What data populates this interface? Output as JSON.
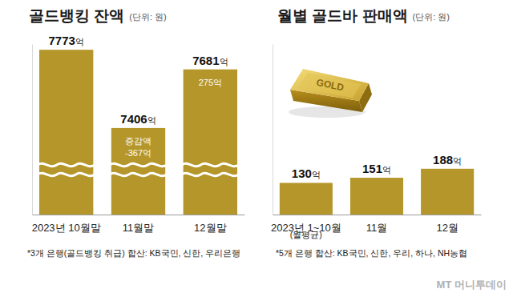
{
  "chart_data": [
    {
      "type": "bar",
      "title": "골드뱅킹 잔액",
      "subtitle": "(단위: 원)",
      "categories": [
        "2023년 10월말",
        "11월말",
        "12월말"
      ],
      "values": [
        7773,
        7406,
        7681
      ],
      "value_labels": [
        "7773억",
        "7406억",
        "7681억"
      ],
      "data_labels": true,
      "color": "#b5962a",
      "ylim": [
        7000,
        7800
      ],
      "yticks": [],
      "tick_labels": "x",
      "annotations": [
        "증감액",
        "-367억",
        "275억"
      ],
      "note": "*3개 은행(골드뱅킹 취급) 합산: KB국민, 신한, 우리은행"
    },
    {
      "type": "bar",
      "title": "월별 골드바 판매액",
      "subtitle": "(단위: 원)",
      "categories": [
        "2023년 1~10월",
        "11월",
        "12월"
      ],
      "values": [
        130,
        151,
        188
      ],
      "value_labels": [
        "130억",
        "151억",
        "188억"
      ],
      "data_labels": true,
      "color": "#b5962a",
      "ylim": [
        0,
        700
      ],
      "yticks": [],
      "tick_labels": "x",
      "annotations": [
        "(월평균)",
        "GOLD"
      ],
      "note": "*5개 은행 합산: KB국민, 신한, 우리, 하나, NH농협",
      "source": "MT 머니투데이"
    }
  ]
}
